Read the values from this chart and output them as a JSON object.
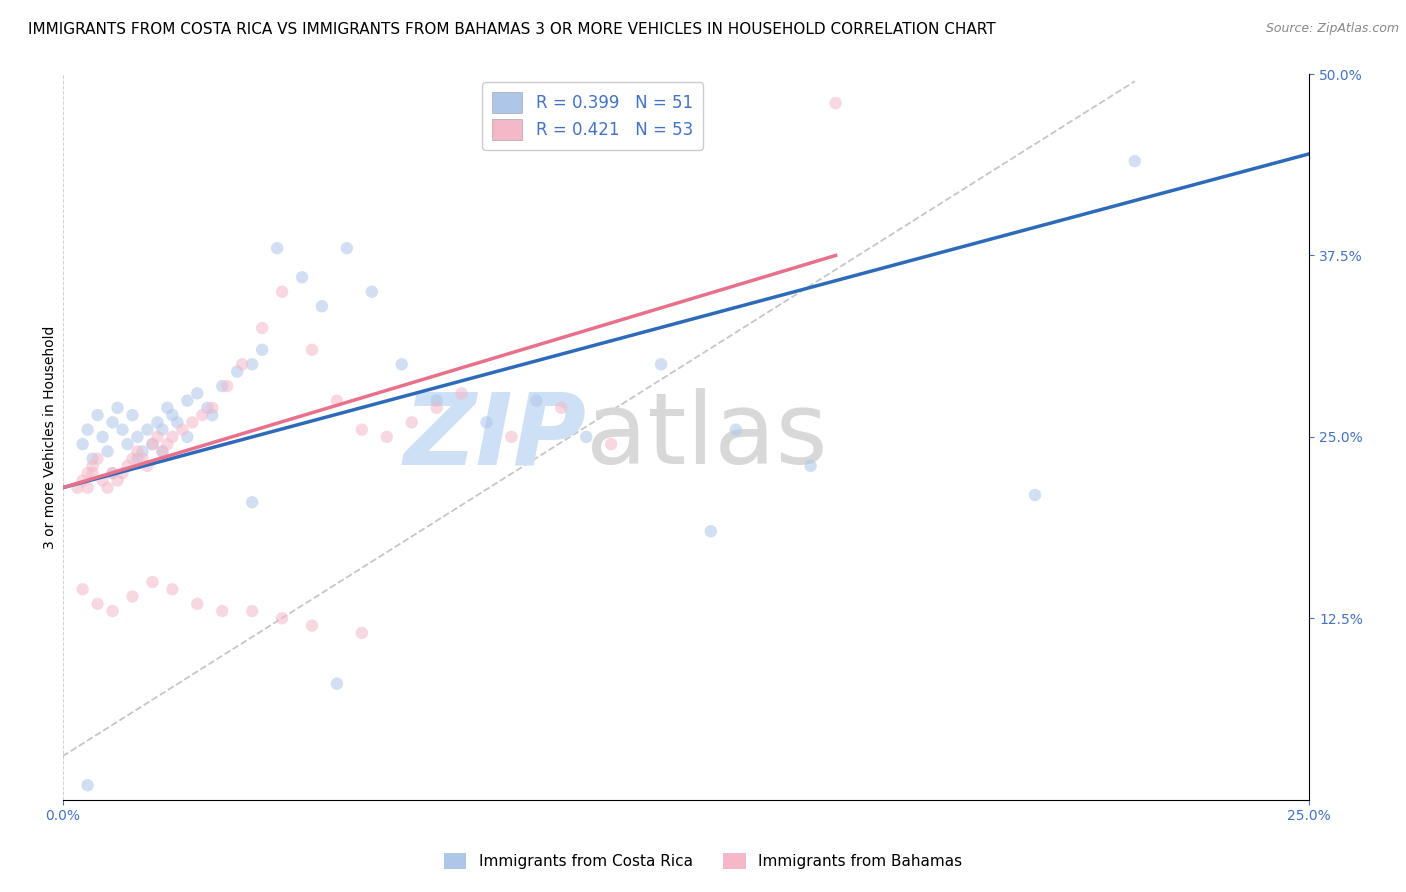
{
  "title": "IMMIGRANTS FROM COSTA RICA VS IMMIGRANTS FROM BAHAMAS 3 OR MORE VEHICLES IN HOUSEHOLD CORRELATION CHART",
  "source": "Source: ZipAtlas.com",
  "ylabel": "3 or more Vehicles in Household",
  "xlim": [
    0.0,
    0.25
  ],
  "ylim": [
    0.0,
    0.5
  ],
  "legend_entries": [
    {
      "label": "Immigrants from Costa Rica",
      "color": "#aec6e8",
      "R": "0.399",
      "N": "51"
    },
    {
      "label": "Immigrants from Bahamas",
      "color": "#f4b8c8",
      "R": "0.421",
      "N": "53"
    }
  ],
  "costa_rica_scatter_x": [
    0.004,
    0.005,
    0.006,
    0.007,
    0.008,
    0.009,
    0.01,
    0.011,
    0.012,
    0.013,
    0.014,
    0.015,
    0.016,
    0.017,
    0.018,
    0.019,
    0.02,
    0.021,
    0.022,
    0.023,
    0.025,
    0.027,
    0.029,
    0.032,
    0.035,
    0.038,
    0.04,
    0.043,
    0.048,
    0.052,
    0.057,
    0.062,
    0.068,
    0.075,
    0.085,
    0.095,
    0.105,
    0.12,
    0.135,
    0.15,
    0.005,
    0.01,
    0.015,
    0.02,
    0.025,
    0.03,
    0.038,
    0.055,
    0.13,
    0.195,
    0.215
  ],
  "costa_rica_scatter_y": [
    0.245,
    0.255,
    0.235,
    0.265,
    0.25,
    0.24,
    0.26,
    0.27,
    0.255,
    0.245,
    0.265,
    0.25,
    0.24,
    0.255,
    0.245,
    0.26,
    0.255,
    0.27,
    0.265,
    0.26,
    0.275,
    0.28,
    0.27,
    0.285,
    0.295,
    0.3,
    0.31,
    0.38,
    0.36,
    0.34,
    0.38,
    0.35,
    0.3,
    0.275,
    0.26,
    0.275,
    0.25,
    0.3,
    0.255,
    0.23,
    0.01,
    0.225,
    0.235,
    0.24,
    0.25,
    0.265,
    0.205,
    0.08,
    0.185,
    0.21,
    0.44
  ],
  "bahamas_scatter_x": [
    0.003,
    0.004,
    0.005,
    0.005,
    0.006,
    0.006,
    0.007,
    0.008,
    0.009,
    0.01,
    0.011,
    0.012,
    0.013,
    0.014,
    0.015,
    0.016,
    0.017,
    0.018,
    0.019,
    0.02,
    0.021,
    0.022,
    0.024,
    0.026,
    0.028,
    0.03,
    0.033,
    0.036,
    0.04,
    0.044,
    0.05,
    0.055,
    0.06,
    0.065,
    0.07,
    0.075,
    0.08,
    0.09,
    0.1,
    0.11,
    0.004,
    0.007,
    0.01,
    0.014,
    0.018,
    0.022,
    0.027,
    0.032,
    0.038,
    0.044,
    0.05,
    0.06,
    0.155
  ],
  "bahamas_scatter_y": [
    0.215,
    0.22,
    0.215,
    0.225,
    0.23,
    0.225,
    0.235,
    0.22,
    0.215,
    0.225,
    0.22,
    0.225,
    0.23,
    0.235,
    0.24,
    0.235,
    0.23,
    0.245,
    0.25,
    0.24,
    0.245,
    0.25,
    0.255,
    0.26,
    0.265,
    0.27,
    0.285,
    0.3,
    0.325,
    0.35,
    0.31,
    0.275,
    0.255,
    0.25,
    0.26,
    0.27,
    0.28,
    0.25,
    0.27,
    0.245,
    0.145,
    0.135,
    0.13,
    0.14,
    0.15,
    0.145,
    0.135,
    0.13,
    0.13,
    0.125,
    0.12,
    0.115,
    0.48
  ],
  "blue_line_x": [
    0.0,
    0.25
  ],
  "blue_line_y": [
    0.215,
    0.445
  ],
  "pink_line_x": [
    0.0,
    0.155
  ],
  "pink_line_y": [
    0.215,
    0.375
  ],
  "dashed_line_x": [
    0.0,
    0.215
  ],
  "dashed_line_y": [
    0.03,
    0.495
  ],
  "scatter_size": 80,
  "scatter_alpha": 0.55,
  "costa_rica_color": "#aec6e8",
  "bahamas_color": "#f4b8c8",
  "blue_line_color": "#2d6bba",
  "pink_line_color": "#e8708a",
  "dashed_line_color": "#b8b8b8",
  "grid_color": "#cccccc",
  "watermark_zip_color": "#cde0f5",
  "watermark_atlas_color": "#d8d8d8",
  "background_color": "#ffffff",
  "title_fontsize": 11,
  "axis_label_fontsize": 10,
  "tick_fontsize": 10,
  "right_tick_color": "#4472c4",
  "bottom_tick_color": "#4472c4"
}
